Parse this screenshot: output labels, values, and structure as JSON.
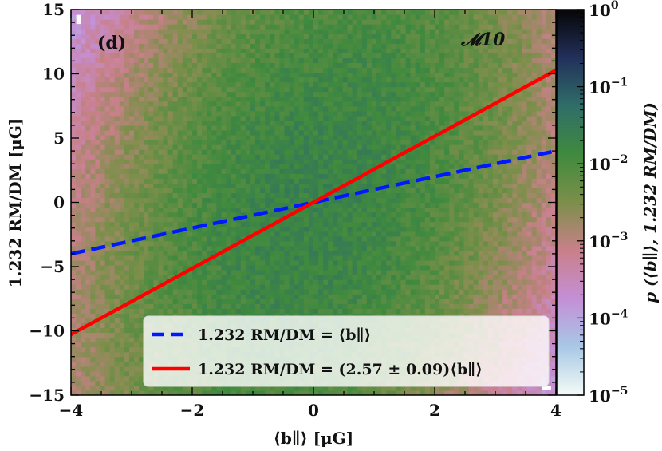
{
  "chart_data": {
    "type": "heatmap",
    "panel_label": "(d)",
    "model_label": "𝓜10",
    "xlabel": "⟨b∥⟩ [μG]",
    "ylabel": "1.232 RM/DM [μG]",
    "xlim": [
      -4,
      4
    ],
    "ylim": [
      -15,
      15
    ],
    "x_ticks": [
      -4,
      -2,
      0,
      2,
      4
    ],
    "x_tick_labels": [
      "−4",
      "−2",
      "0",
      "2",
      "4"
    ],
    "y_ticks": [
      -15,
      -10,
      -5,
      0,
      5,
      10,
      15
    ],
    "y_tick_labels": [
      "−15",
      "−10",
      "−5",
      "0",
      "5",
      "10",
      "15"
    ],
    "colorbar": {
      "label": "p (⟨b∥⟩, 1.232 RM/DM)",
      "scale": "log",
      "range": [
        1e-05,
        1
      ],
      "tick_exponents": [
        -5,
        -4,
        -3,
        -2,
        -1,
        0
      ],
      "colors": [
        "#f4fbf6",
        "#a8c8e6",
        "#c48fd6",
        "#c9808a",
        "#7c8f4a",
        "#3f8a3e",
        "#2f6e68",
        "#22305a",
        "#060606"
      ]
    },
    "series": [
      {
        "name": "1.232 RM/DM = ⟨b∥⟩",
        "slope": 1.0,
        "color": "#0018ff",
        "style": "dashed",
        "x": [
          -4,
          4
        ],
        "y": [
          -4,
          4
        ]
      },
      {
        "name": "1.232 RM/DM = (2.57 ± 0.09)⟨b∥⟩",
        "slope": 2.57,
        "color": "#ff0000",
        "style": "solid",
        "x": [
          -4,
          4
        ],
        "y": [
          -10.28,
          10.28
        ]
      }
    ],
    "legend_position": "lower-right",
    "density_model": {
      "description": "joint PDF concentrated along y = 2.57 x with broad tails",
      "peak": 0.02,
      "slope": 2.57,
      "sigma_x": 1.7,
      "sigma_perp": 4.2
    }
  }
}
